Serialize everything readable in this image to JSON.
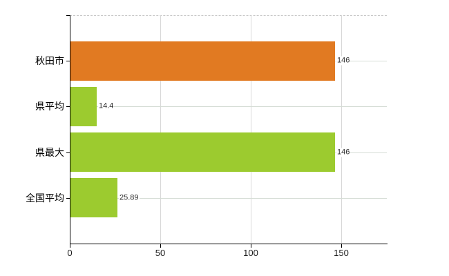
{
  "chart_data": {
    "type": "bar",
    "orientation": "horizontal",
    "title": "",
    "xlabel": "",
    "ylabel": "",
    "categories": [
      "秋田市",
      "県平均",
      "県最大",
      "全国平均"
    ],
    "values": [
      146,
      14.4,
      146,
      25.89
    ],
    "value_labels": [
      "146",
      "14.4",
      "146",
      "25.89"
    ],
    "bar_colors": [
      "#e17a22",
      "#9ccb2f",
      "#9ccb2f",
      "#9ccb2f"
    ],
    "x_ticks": [
      0,
      50,
      100,
      150
    ],
    "x_tick_labels": [
      "0",
      "50",
      "100",
      "150"
    ],
    "xlim": [
      0,
      175.2
    ],
    "grid": true,
    "legend": false,
    "gridline_color_vertical": "#d8d8d8",
    "gridline_color_horizontal": "#d5dcd5",
    "top_boundary_style": "dashed",
    "axis_color": "#000000"
  }
}
